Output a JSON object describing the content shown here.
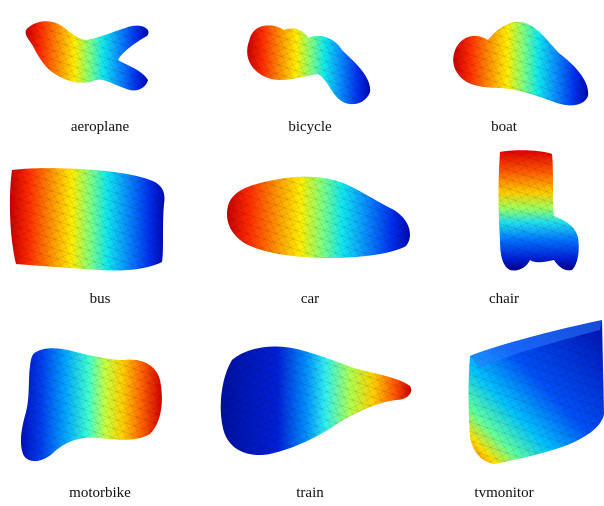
{
  "colormap": [
    "#00007f",
    "#0000ff",
    "#007fff",
    "#00ffff",
    "#7fff7f",
    "#ffff00",
    "#ff7f00",
    "#ff0000",
    "#7f0000"
  ],
  "figure": {
    "items": [
      {
        "label": "aeroplane",
        "shape": "aeroplane-mesh"
      },
      {
        "label": "bicycle",
        "shape": "bicycle-mesh"
      },
      {
        "label": "boat",
        "shape": "boat-mesh"
      },
      {
        "label": "bus",
        "shape": "bus-mesh"
      },
      {
        "label": "car",
        "shape": "car-mesh"
      },
      {
        "label": "chair",
        "shape": "chair-mesh"
      },
      {
        "label": "motorbike",
        "shape": "motorbike-mesh"
      },
      {
        "label": "train",
        "shape": "train-mesh"
      },
      {
        "label": "tvmonitor",
        "shape": "tvmonitor-mesh"
      }
    ]
  }
}
